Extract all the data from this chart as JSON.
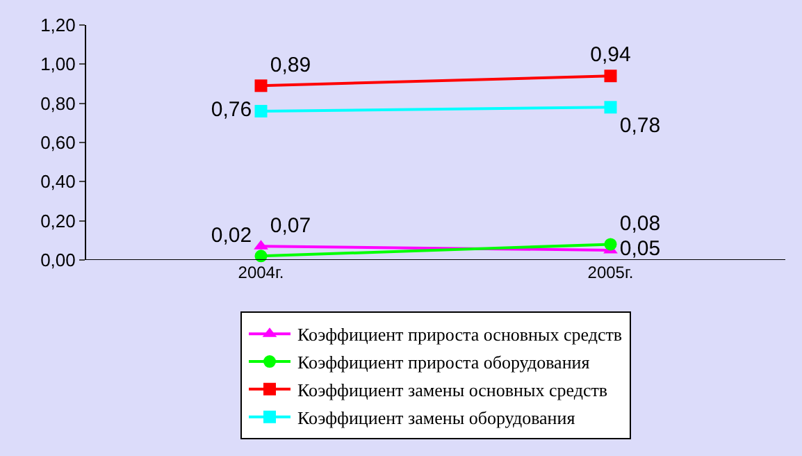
{
  "chart_data": {
    "type": "line",
    "categories": [
      "2004г.",
      "2005г."
    ],
    "series": [
      {
        "name": "Коэффициент прироста основных средств",
        "color": "#ff00ff",
        "marker": "triangle",
        "values": [
          0.07,
          0.05
        ],
        "value_labels": [
          "0,07",
          "0,05"
        ]
      },
      {
        "name": "Коэффициент прироста оборудования",
        "color": "#00ff00",
        "marker": "circle",
        "values": [
          0.02,
          0.08
        ],
        "value_labels": [
          "0,02",
          "0,08"
        ]
      },
      {
        "name": "Коэффициент замены основных средств",
        "color": "#ff0000",
        "marker": "square",
        "values": [
          0.89,
          0.94
        ],
        "value_labels": [
          "0,89",
          "0,94"
        ]
      },
      {
        "name": "Коэффициент замены оборудования",
        "color": "#00ffff",
        "marker": "square",
        "values": [
          0.76,
          0.78
        ],
        "value_labels": [
          "0,76",
          "0,78"
        ]
      }
    ],
    "ylim": [
      0,
      1.2
    ],
    "yticks": [
      {
        "value": 0,
        "label": "0,00"
      },
      {
        "value": 0.2,
        "label": "0,20"
      },
      {
        "value": 0.4,
        "label": "0,40"
      },
      {
        "value": 0.6,
        "label": "0,60"
      },
      {
        "value": 0.8,
        "label": "0,80"
      },
      {
        "value": 1.0,
        "label": "1,00"
      },
      {
        "value": 1.2,
        "label": "1,20"
      }
    ],
    "grid": false,
    "legend": "bottom"
  }
}
